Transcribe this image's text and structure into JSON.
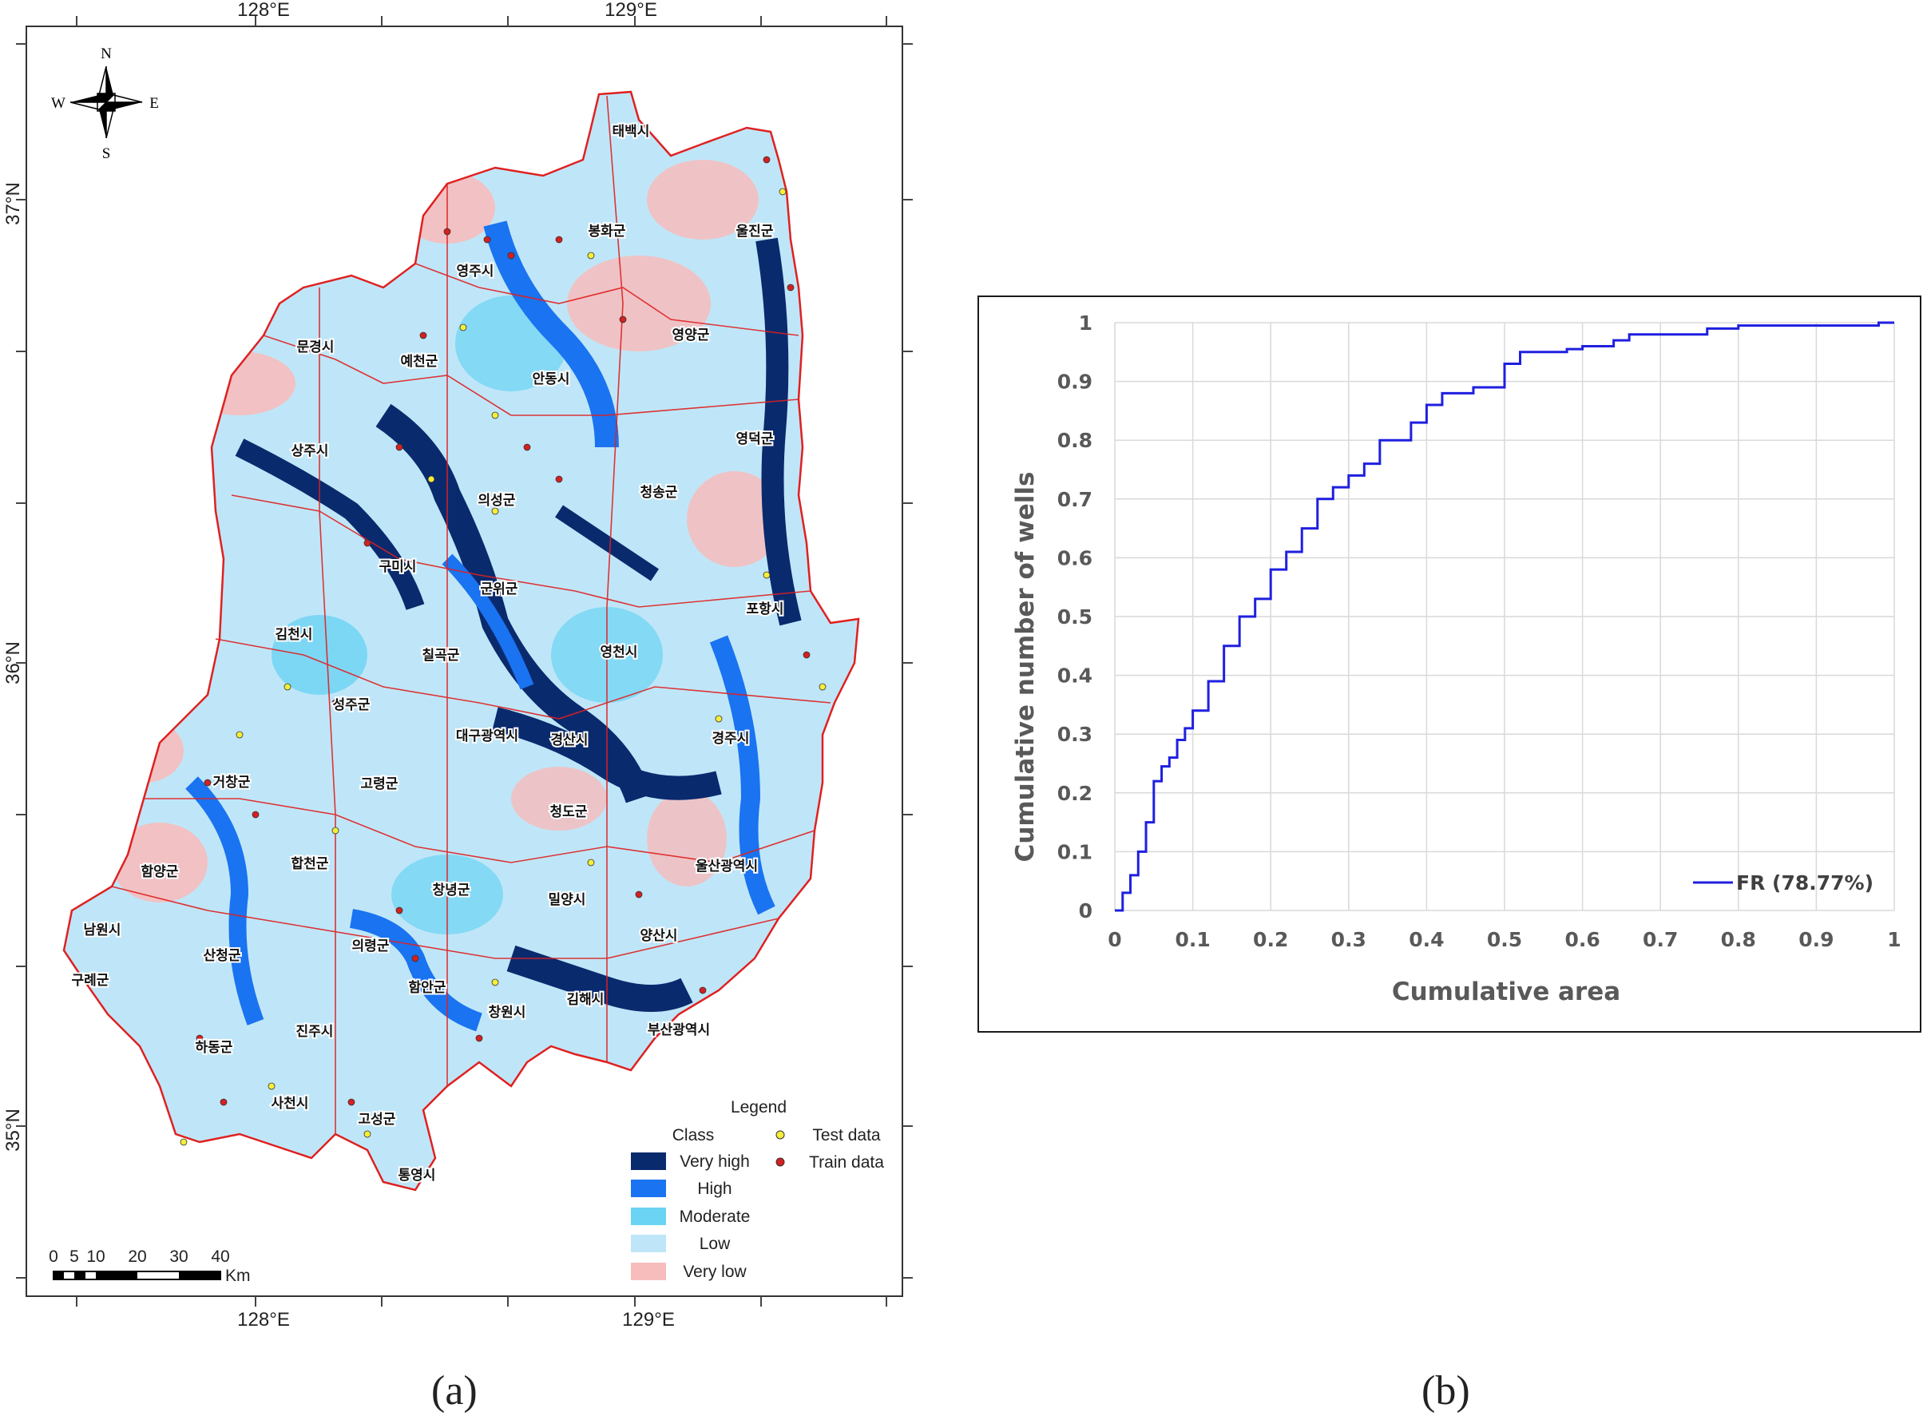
{
  "captions": {
    "a": "(a)",
    "b": "(b)"
  },
  "map": {
    "lon_labels": [
      "128°E",
      "129°E"
    ],
    "lat_labels": [
      "37°N",
      "36°N",
      "35°N"
    ],
    "compass": {
      "n": "N",
      "s": "S",
      "e": "E",
      "w": "W"
    },
    "scale_bar": {
      "ticks": [
        "0",
        "5",
        "10",
        "20",
        "30",
        "40"
      ],
      "unit": "Km"
    },
    "legend": {
      "title": "Legend",
      "class_title": "Class",
      "classes": [
        {
          "label": "Very high",
          "color": "#0a2a6e"
        },
        {
          "label": "High",
          "color": "#1a73f0"
        },
        {
          "label": "Moderate",
          "color": "#6bd3f3"
        },
        {
          "label": "Low",
          "color": "#bfe6f8"
        },
        {
          "label": "Very low",
          "color": "#f7bcbc"
        }
      ],
      "points": [
        {
          "label": "Test data",
          "color": "#f5ee3a"
        },
        {
          "label": "Train data",
          "color": "#d42020"
        }
      ]
    },
    "places": [
      "태백시",
      "봉화군",
      "울진군",
      "영주시",
      "영양군",
      "문경시",
      "예천군",
      "안동시",
      "영덕군",
      "상주시",
      "의성군",
      "청송군",
      "구미시",
      "군위군",
      "포항시",
      "김천시",
      "영천시",
      "칠곡군",
      "성주군",
      "대구광역시",
      "경산시",
      "경주시",
      "거창군",
      "고령군",
      "청도군",
      "함양군",
      "합천군",
      "울산광역시",
      "남원시",
      "창녕군",
      "밀양시",
      "산청군",
      "의령군",
      "양산시",
      "구례군",
      "함안군",
      "김해시",
      "창원시",
      "부산광역시",
      "하동군",
      "진주시",
      "사천시",
      "고성군",
      "통영시"
    ]
  },
  "chart_data": {
    "type": "line",
    "xlabel": "Cumulative area",
    "ylabel": "Cumulative number of wells",
    "xlim": [
      0,
      1
    ],
    "ylim": [
      0,
      1
    ],
    "x_ticks": [
      "0",
      "0.1",
      "0.2",
      "0.3",
      "0.4",
      "0.5",
      "0.6",
      "0.7",
      "0.8",
      "0.9",
      "1"
    ],
    "y_ticks": [
      "0",
      "0.1",
      "0.2",
      "0.3",
      "0.4",
      "0.5",
      "0.6",
      "0.7",
      "0.8",
      "0.9",
      "1"
    ],
    "grid": true,
    "legend_position": "bottom-right",
    "series": [
      {
        "name": "FR (78.77%)",
        "color": "#1f1fe0",
        "x": [
          0,
          0.01,
          0.02,
          0.03,
          0.04,
          0.05,
          0.06,
          0.07,
          0.08,
          0.09,
          0.1,
          0.12,
          0.14,
          0.16,
          0.18,
          0.2,
          0.22,
          0.24,
          0.26,
          0.28,
          0.3,
          0.32,
          0.34,
          0.36,
          0.38,
          0.4,
          0.42,
          0.44,
          0.46,
          0.48,
          0.5,
          0.52,
          0.54,
          0.56,
          0.58,
          0.6,
          0.62,
          0.64,
          0.66,
          0.7,
          0.76,
          0.8,
          0.86,
          0.9,
          0.96,
          0.98,
          1.0
        ],
        "y": [
          0,
          0.03,
          0.06,
          0.1,
          0.15,
          0.22,
          0.245,
          0.26,
          0.29,
          0.31,
          0.34,
          0.39,
          0.45,
          0.5,
          0.53,
          0.58,
          0.61,
          0.65,
          0.7,
          0.72,
          0.74,
          0.76,
          0.8,
          0.8,
          0.83,
          0.86,
          0.88,
          0.88,
          0.89,
          0.89,
          0.93,
          0.95,
          0.95,
          0.95,
          0.955,
          0.96,
          0.96,
          0.97,
          0.98,
          0.98,
          0.99,
          0.995,
          0.995,
          0.995,
          0.995,
          1.0,
          1.0
        ]
      }
    ]
  }
}
